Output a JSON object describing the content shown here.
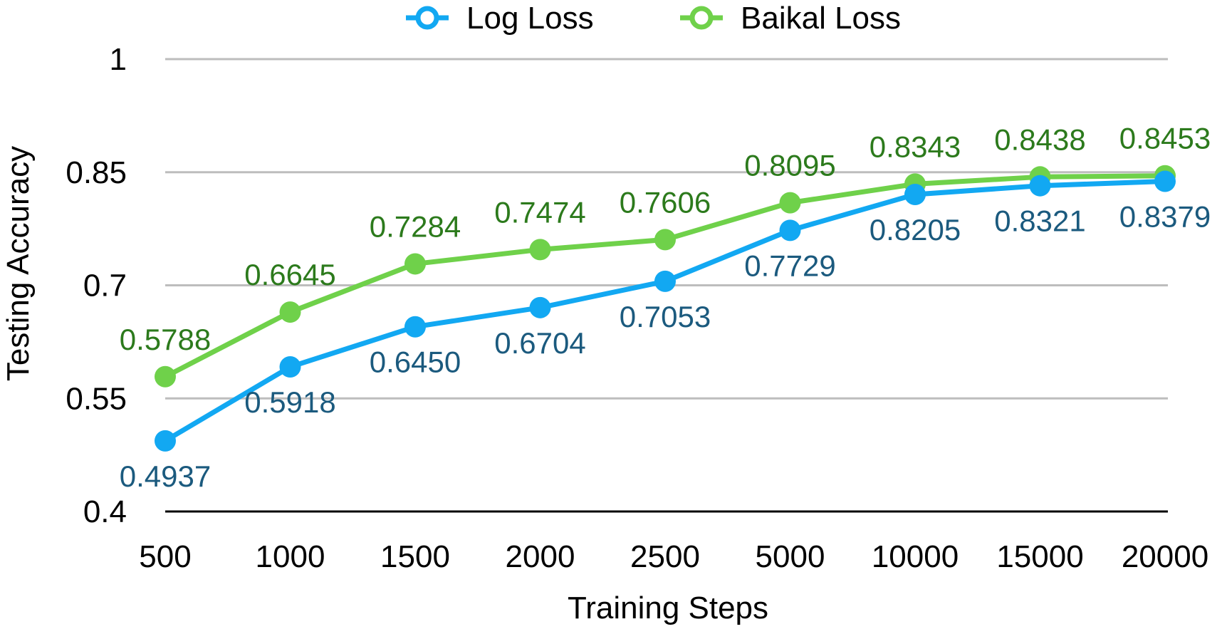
{
  "chart_data": {
    "type": "line",
    "xlabel": "Training Steps",
    "ylabel": "Testing Accuracy",
    "categories": [
      "500",
      "1000",
      "1500",
      "2000",
      "2500",
      "5000",
      "10000",
      "15000",
      "20000"
    ],
    "ylim": [
      0.4,
      1
    ],
    "yticks": [
      "0.4",
      "0.55",
      "0.7",
      "0.85",
      "1"
    ],
    "grid": true,
    "legend_position": "top",
    "series": [
      {
        "name": "Log Loss",
        "color": "#12a8f2",
        "label_color": "#1b5a7e",
        "values": [
          0.4937,
          0.5918,
          0.645,
          0.6704,
          0.7053,
          0.7729,
          0.8205,
          0.8321,
          0.8379
        ],
        "labels": [
          "0.4937",
          "0.5918",
          "0.6450",
          "0.6704",
          "0.7053",
          "0.7729",
          "0.8205",
          "0.8321",
          "0.8379"
        ]
      },
      {
        "name": "Baikal Loss",
        "color": "#6fd14a",
        "label_color": "#2c7a1c",
        "values": [
          0.5788,
          0.6645,
          0.7284,
          0.7474,
          0.7606,
          0.8095,
          0.8343,
          0.8438,
          0.8453
        ],
        "labels": [
          "0.5788",
          "0.6645",
          "0.7284",
          "0.7474",
          "0.7606",
          "0.8095",
          "0.8343",
          "0.8438",
          "0.8453"
        ]
      }
    ]
  }
}
